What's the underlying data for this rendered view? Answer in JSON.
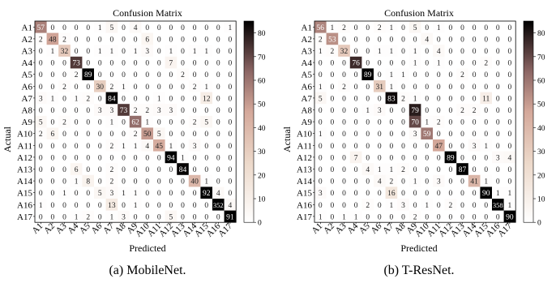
{
  "chart_data": [
    {
      "type": "heatmap",
      "title": "Confusion Matrix",
      "caption": "(a)  MobileNet.",
      "xlabel": "Predicted",
      "ylabel": "Actual",
      "labels": [
        "A1",
        "A2",
        "A3",
        "A4",
        "A5",
        "A6",
        "A7",
        "A8",
        "A9",
        "A10",
        "A11",
        "A12",
        "A13",
        "A14",
        "A15",
        "A16",
        "A17"
      ],
      "colorbar": {
        "min": 0,
        "max": 85,
        "ticks": [
          0,
          10,
          20,
          30,
          40,
          50,
          60,
          70,
          80
        ]
      },
      "matrix": [
        [
          57,
          0,
          0,
          0,
          0,
          1,
          5,
          0,
          4,
          0,
          0,
          0,
          0,
          0,
          0,
          0,
          1
        ],
        [
          2,
          48,
          2,
          0,
          0,
          0,
          0,
          0,
          0,
          6,
          0,
          0,
          0,
          0,
          0,
          0,
          0
        ],
        [
          0,
          1,
          32,
          0,
          0,
          1,
          1,
          0,
          1,
          3,
          0,
          1,
          0,
          1,
          1,
          0,
          0
        ],
        [
          0,
          0,
          0,
          73,
          0,
          0,
          0,
          0,
          0,
          0,
          0,
          7,
          0,
          0,
          0,
          0,
          0
        ],
        [
          0,
          0,
          0,
          2,
          89,
          0,
          0,
          0,
          0,
          0,
          0,
          0,
          2,
          0,
          0,
          0,
          0
        ],
        [
          0,
          0,
          2,
          0,
          0,
          30,
          2,
          1,
          0,
          0,
          0,
          0,
          0,
          2,
          1,
          0,
          0
        ],
        [
          3,
          1,
          0,
          1,
          2,
          0,
          84,
          0,
          0,
          0,
          1,
          0,
          0,
          0,
          12,
          0,
          0
        ],
        [
          0,
          0,
          0,
          0,
          0,
          3,
          3,
          73,
          2,
          2,
          3,
          3,
          0,
          0,
          0,
          0,
          0
        ],
        [
          5,
          0,
          2,
          0,
          0,
          0,
          1,
          0,
          62,
          1,
          0,
          0,
          0,
          2,
          5,
          0,
          0
        ],
        [
          2,
          6,
          0,
          0,
          0,
          0,
          0,
          0,
          2,
          50,
          5,
          0,
          0,
          0,
          0,
          0,
          0
        ],
        [
          0,
          0,
          0,
          0,
          0,
          0,
          2,
          1,
          1,
          4,
          45,
          1,
          0,
          3,
          0,
          0,
          0
        ],
        [
          0,
          0,
          0,
          0,
          0,
          0,
          0,
          0,
          0,
          0,
          0,
          94,
          1,
          0,
          0,
          0,
          0
        ],
        [
          0,
          0,
          0,
          6,
          0,
          0,
          2,
          0,
          0,
          0,
          0,
          0,
          84,
          0,
          0,
          0,
          0
        ],
        [
          0,
          0,
          0,
          1,
          8,
          0,
          2,
          0,
          0,
          0,
          0,
          0,
          0,
          40,
          1,
          0,
          0
        ],
        [
          0,
          0,
          1,
          0,
          0,
          5,
          3,
          1,
          1,
          0,
          0,
          0,
          0,
          0,
          92,
          4,
          0
        ],
        [
          1,
          0,
          0,
          0,
          0,
          0,
          13,
          0,
          1,
          0,
          0,
          0,
          0,
          0,
          0,
          352,
          4
        ],
        [
          0,
          0,
          0,
          1,
          2,
          0,
          1,
          3,
          0,
          0,
          0,
          5,
          0,
          0,
          0,
          0,
          91
        ]
      ]
    },
    {
      "type": "heatmap",
      "title": "Confusion Matrix",
      "caption": "(b)  T-ResNet.",
      "xlabel": "Predicted",
      "ylabel": "Actual",
      "labels": [
        "A1",
        "A2",
        "A3",
        "A4",
        "A5",
        "A6",
        "A7",
        "A8",
        "A9",
        "A10",
        "A11",
        "A12",
        "A13",
        "A14",
        "A15",
        "A16",
        "A17"
      ],
      "colorbar": {
        "min": 0,
        "max": 85,
        "ticks": [
          0,
          10,
          20,
          30,
          40,
          50,
          60,
          70,
          80
        ]
      },
      "matrix": [
        [
          56,
          1,
          2,
          0,
          0,
          2,
          1,
          0,
          5,
          0,
          1,
          0,
          0,
          0,
          0,
          0,
          0
        ],
        [
          2,
          53,
          0,
          0,
          0,
          0,
          0,
          0,
          0,
          4,
          0,
          0,
          0,
          0,
          0,
          0,
          0
        ],
        [
          1,
          2,
          32,
          0,
          0,
          1,
          1,
          0,
          1,
          0,
          4,
          0,
          0,
          0,
          0,
          0,
          0
        ],
        [
          0,
          0,
          0,
          76,
          0,
          0,
          0,
          0,
          1,
          0,
          1,
          0,
          0,
          0,
          2,
          0,
          0
        ],
        [
          0,
          0,
          0,
          0,
          89,
          0,
          1,
          1,
          0,
          0,
          0,
          0,
          2,
          0,
          0,
          0,
          0
        ],
        [
          1,
          0,
          2,
          0,
          0,
          31,
          1,
          0,
          0,
          0,
          0,
          0,
          0,
          0,
          0,
          0,
          0
        ],
        [
          5,
          0,
          0,
          0,
          0,
          0,
          83,
          2,
          1,
          0,
          0,
          0,
          0,
          0,
          11,
          0,
          0
        ],
        [
          0,
          0,
          0,
          0,
          1,
          3,
          0,
          0,
          79,
          0,
          0,
          0,
          2,
          2,
          0,
          0,
          0
        ],
        [
          0,
          0,
          0,
          0,
          0,
          0,
          0,
          0,
          70,
          1,
          2,
          0,
          0,
          0,
          0,
          0,
          0
        ],
        [
          1,
          0,
          0,
          0,
          0,
          0,
          0,
          0,
          3,
          59,
          0,
          0,
          0,
          0,
          0,
          0,
          0
        ],
        [
          0,
          0,
          0,
          0,
          0,
          0,
          0,
          0,
          0,
          0,
          47,
          0,
          0,
          3,
          1,
          0,
          0
        ],
        [
          0,
          0,
          0,
          7,
          0,
          0,
          0,
          0,
          0,
          0,
          0,
          89,
          0,
          0,
          0,
          3,
          4
        ],
        [
          0,
          0,
          0,
          0,
          4,
          1,
          1,
          2,
          0,
          0,
          0,
          0,
          87,
          0,
          0,
          0,
          0
        ],
        [
          0,
          0,
          0,
          0,
          0,
          4,
          2,
          0,
          1,
          0,
          3,
          0,
          0,
          41,
          1,
          0,
          0
        ],
        [
          3,
          0,
          0,
          0,
          0,
          0,
          16,
          0,
          0,
          0,
          0,
          0,
          0,
          0,
          90,
          1,
          1
        ],
        [
          0,
          0,
          0,
          0,
          2,
          0,
          1,
          3,
          0,
          1,
          0,
          2,
          0,
          0,
          0,
          358,
          1
        ],
        [
          1,
          0,
          1,
          1,
          0,
          0,
          0,
          0,
          2,
          0,
          0,
          0,
          0,
          0,
          0,
          0,
          90
        ]
      ]
    }
  ]
}
